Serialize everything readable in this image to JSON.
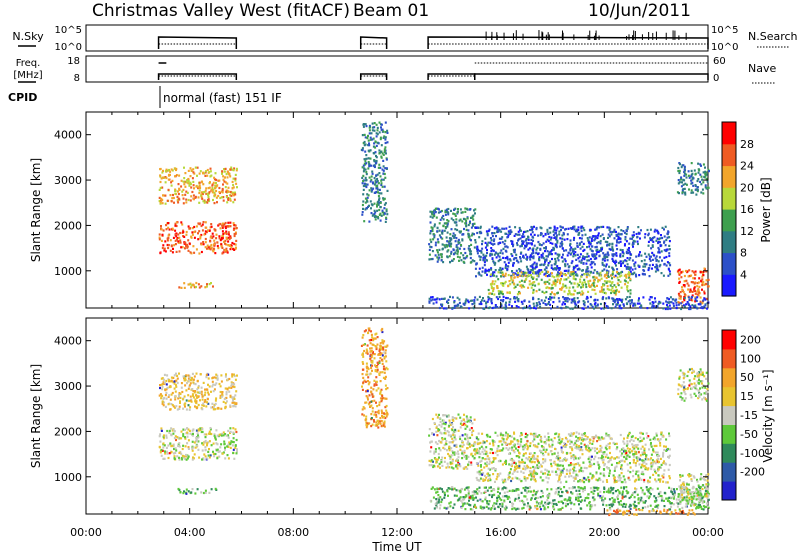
{
  "header": {
    "station": "Christmas Valley West (fitACF)",
    "beam": "Beam 01",
    "date": "10/Jun/2011"
  },
  "status_panels": {
    "nsky_label": "N.Sky",
    "nsky_ticks": [
      "10^5",
      "10^0"
    ],
    "nsearch_label": "N.Search",
    "nsearch_ticks": [
      "10^5",
      "10^0"
    ],
    "freq_label_1": "Freq.",
    "freq_label_2": "[MHz]",
    "freq_ticks": [
      "18",
      "8"
    ],
    "nave_label": "Nave",
    "nave_ticks": [
      "60",
      "0"
    ],
    "cpid_label": "CPID",
    "cpid_text": "normal (fast) 151 IF"
  },
  "chart_data": [
    {
      "type": "heatmap",
      "name": "power-panel",
      "ylabel": "Slant Range [km]",
      "xlabel": "",
      "x_range_hours": [
        0,
        24
      ],
      "ylim": [
        180,
        4500
      ],
      "y_ticks": [
        1000,
        2000,
        3000,
        4000
      ],
      "colorbar": {
        "label": "Power [dB]",
        "ticks": [
          4,
          8,
          12,
          16,
          20,
          24,
          28
        ],
        "colors": [
          "#1a1aff",
          "#2c50c8",
          "#2f7d83",
          "#3e9f4e",
          "#b8d83a",
          "#f2a52b",
          "#ef5b23",
          "#ff0000"
        ]
      },
      "regions": [
        {
          "t0": 2.8,
          "t1": 5.8,
          "r0": 2500,
          "r1": 3300,
          "level": 5
        },
        {
          "t0": 2.8,
          "t1": 5.8,
          "r0": 1400,
          "r1": 2100,
          "level": 6
        },
        {
          "t0": 3.5,
          "t1": 5.0,
          "r0": 640,
          "r1": 760,
          "level": 5
        },
        {
          "t0": 10.6,
          "t1": 11.6,
          "r0": 2100,
          "r1": 4300,
          "level": 2
        },
        {
          "t0": 13.2,
          "t1": 15.0,
          "r0": 1200,
          "r1": 2400,
          "level": 2
        },
        {
          "t0": 15.0,
          "t1": 22.5,
          "r0": 900,
          "r1": 2000,
          "level": 1
        },
        {
          "t0": 15.5,
          "t1": 21.0,
          "r0": 500,
          "r1": 1000,
          "level": 4
        },
        {
          "t0": 22.8,
          "t1": 24.0,
          "r0": 300,
          "r1": 1100,
          "level": 6
        },
        {
          "t0": 22.8,
          "t1": 24.0,
          "r0": 2700,
          "r1": 3400,
          "level": 2
        },
        {
          "t0": 13.2,
          "t1": 24.0,
          "r0": 180,
          "r1": 450,
          "level": 1
        }
      ]
    },
    {
      "type": "heatmap",
      "name": "velocity-panel",
      "ylabel": "Slant Range [km]",
      "xlabel": "Time UT",
      "x_range_hours": [
        0,
        24
      ],
      "x_ticks": [
        "00:00",
        "04:00",
        "08:00",
        "12:00",
        "16:00",
        "20:00",
        "00:00"
      ],
      "ylim": [
        180,
        4500
      ],
      "y_ticks": [
        1000,
        2000,
        3000,
        4000
      ],
      "colorbar": {
        "label": "Velocity [m s⁻¹]",
        "ticks": [
          200,
          100,
          50,
          15,
          -15,
          -50,
          -100,
          -200
        ],
        "colors": [
          "#2222cc",
          "#2e5aa7",
          "#2f8a5b",
          "#5ec93a",
          "#c9c9bf",
          "#e8c430",
          "#f2a52b",
          "#ef5b23",
          "#ff0000"
        ]
      },
      "regions": [
        {
          "t0": 2.8,
          "t1": 5.8,
          "r0": 2500,
          "r1": 3300,
          "level": 5
        },
        {
          "t0": 2.8,
          "t1": 5.8,
          "r0": 1400,
          "r1": 2100,
          "level": 4
        },
        {
          "t0": 3.5,
          "t1": 5.0,
          "r0": 640,
          "r1": 760,
          "level": 3
        },
        {
          "t0": 10.6,
          "t1": 11.6,
          "r0": 2100,
          "r1": 4300,
          "level": 6
        },
        {
          "t0": 13.2,
          "t1": 15.0,
          "r0": 1200,
          "r1": 2400,
          "level": 4
        },
        {
          "t0": 15.0,
          "t1": 22.5,
          "r0": 900,
          "r1": 2000,
          "level": 4
        },
        {
          "t0": 13.2,
          "t1": 24.0,
          "r0": 300,
          "r1": 800,
          "level": 3
        },
        {
          "t0": 22.8,
          "t1": 24.0,
          "r0": 300,
          "r1": 1100,
          "level": 4
        },
        {
          "t0": 22.8,
          "t1": 24.0,
          "r0": 2700,
          "r1": 3400,
          "level": 4
        },
        {
          "t0": 20.0,
          "t1": 23.5,
          "r0": 180,
          "r1": 300,
          "level": 6
        }
      ]
    }
  ]
}
